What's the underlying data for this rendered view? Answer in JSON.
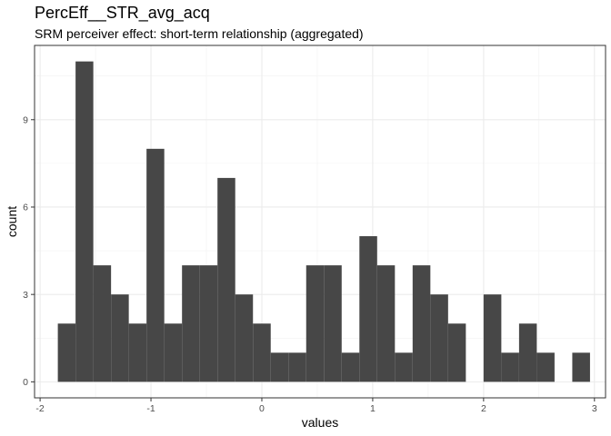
{
  "chart_data": {
    "type": "bar",
    "subtype": "histogram",
    "title": "PercEff__STR_avg_acq",
    "subtitle": "SRM perceiver effect: short-term relationship (aggregated)",
    "xlabel": "values",
    "ylabel": "count",
    "xlim": [
      -2.05,
      3.1
    ],
    "ylim": [
      -0.55,
      11.55
    ],
    "xticks": [
      -2,
      -1,
      0,
      1,
      2,
      3
    ],
    "yticks": [
      0,
      3,
      6,
      9
    ],
    "grid": true,
    "bar_color": "#474747",
    "bin_edges": [
      -1.84,
      -1.68,
      -1.52,
      -1.36,
      -1.2,
      -1.04,
      -0.88,
      -0.72,
      -0.56,
      -0.4,
      -0.24,
      -0.08,
      0.08,
      0.24,
      0.4,
      0.56,
      0.72,
      0.88,
      1.04,
      1.2,
      1.36,
      1.52,
      1.68,
      1.84,
      2.0,
      2.16,
      2.32,
      2.48,
      2.64,
      2.8,
      2.96
    ],
    "counts": [
      2,
      11,
      4,
      3,
      2,
      8,
      2,
      4,
      4,
      7,
      3,
      2,
      1,
      1,
      4,
      4,
      1,
      5,
      4,
      1,
      4,
      3,
      2,
      0,
      3,
      1,
      2,
      1,
      0,
      1
    ]
  }
}
